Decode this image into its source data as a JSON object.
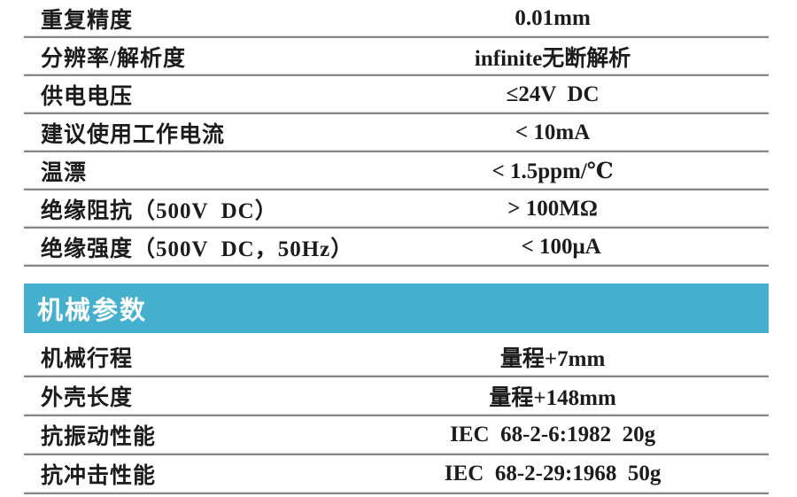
{
  "colors": {
    "accent_teal": "#44b0ce",
    "divider_gray": "#868686",
    "text": "#1c1c1c",
    "header_text": "#ffffff"
  },
  "electrical_rows": [
    {
      "label": "重复精度",
      "value": "0.01mm"
    },
    {
      "label": "分辨率/解析度",
      "value": "infinite无断解析"
    },
    {
      "label": "供电电压",
      "value": "≤24V  DC"
    },
    {
      "label": "建议使用工作电流",
      "value": "< 10mA"
    },
    {
      "label": "温漂",
      "value": "< 1.5ppm/℃"
    },
    {
      "label": "绝缘阻抗（500V  DC）",
      "value": "> 100MΩ"
    },
    {
      "label": "绝缘强度（500V  DC，50Hz）",
      "value": "< 100μA"
    }
  ],
  "section_header": {
    "title": "机械参数"
  },
  "mechanical_rows": [
    {
      "label": "机械行程",
      "value": "量程+7mm"
    },
    {
      "label": "外壳长度",
      "value": "量程+148mm"
    },
    {
      "label": "抗振动性能",
      "value": "IEC  68-2-6:1982  20g"
    },
    {
      "label": "抗冲击性能",
      "value": "IEC  68-2-29:1968  50g"
    }
  ]
}
